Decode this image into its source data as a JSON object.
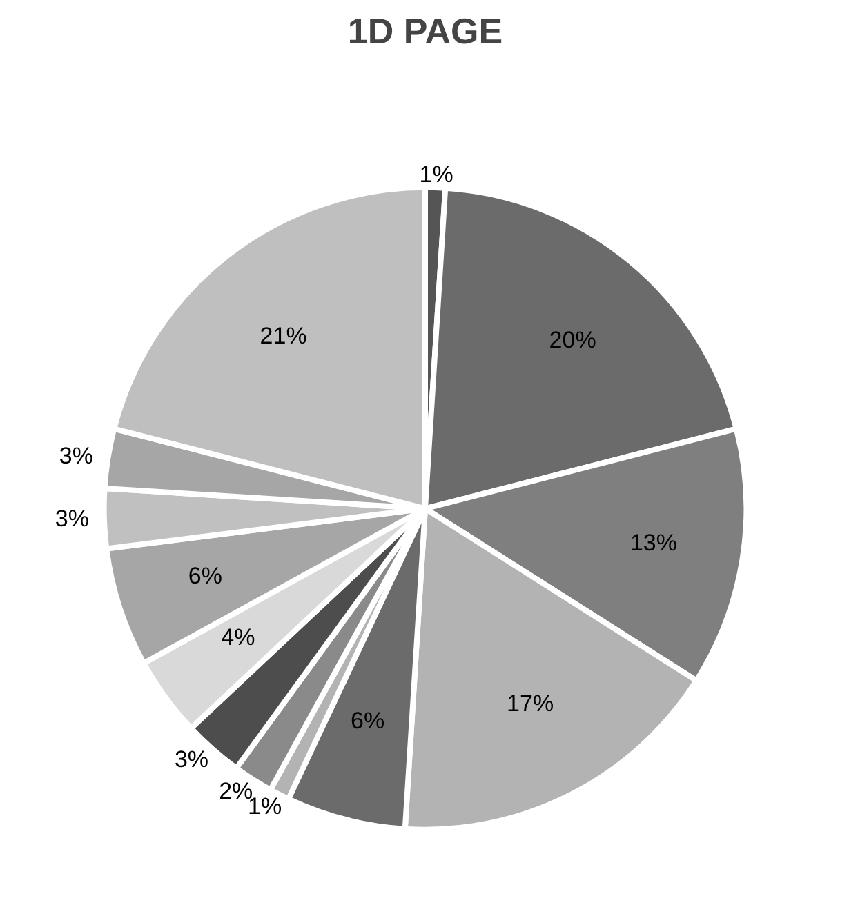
{
  "chart_data": {
    "type": "pie",
    "title": "1D PAGE",
    "categories": [
      null,
      null,
      null,
      null,
      null,
      null,
      null,
      null,
      null,
      null,
      null,
      null,
      null
    ],
    "values": [
      1,
      20,
      13,
      17,
      6,
      1,
      2,
      3,
      4,
      6,
      3,
      3,
      21
    ],
    "colors": [
      "#555555",
      "#6b6b6b",
      "#7f7f7f",
      "#b3b3b3",
      "#6b6b6b",
      "#b3b3b3",
      "#8a8a8a",
      "#4d4d4d",
      "#d9d9d9",
      "#a6a6a6",
      "#c0c0c0",
      "#a6a6a6",
      "#bfbfbf"
    ],
    "value_labels": [
      "1%",
      "20%",
      "13%",
      "17%",
      "6%",
      "1%",
      "2%",
      "3%",
      "4%",
      "6%",
      "3%",
      "3%",
      "21%"
    ]
  }
}
